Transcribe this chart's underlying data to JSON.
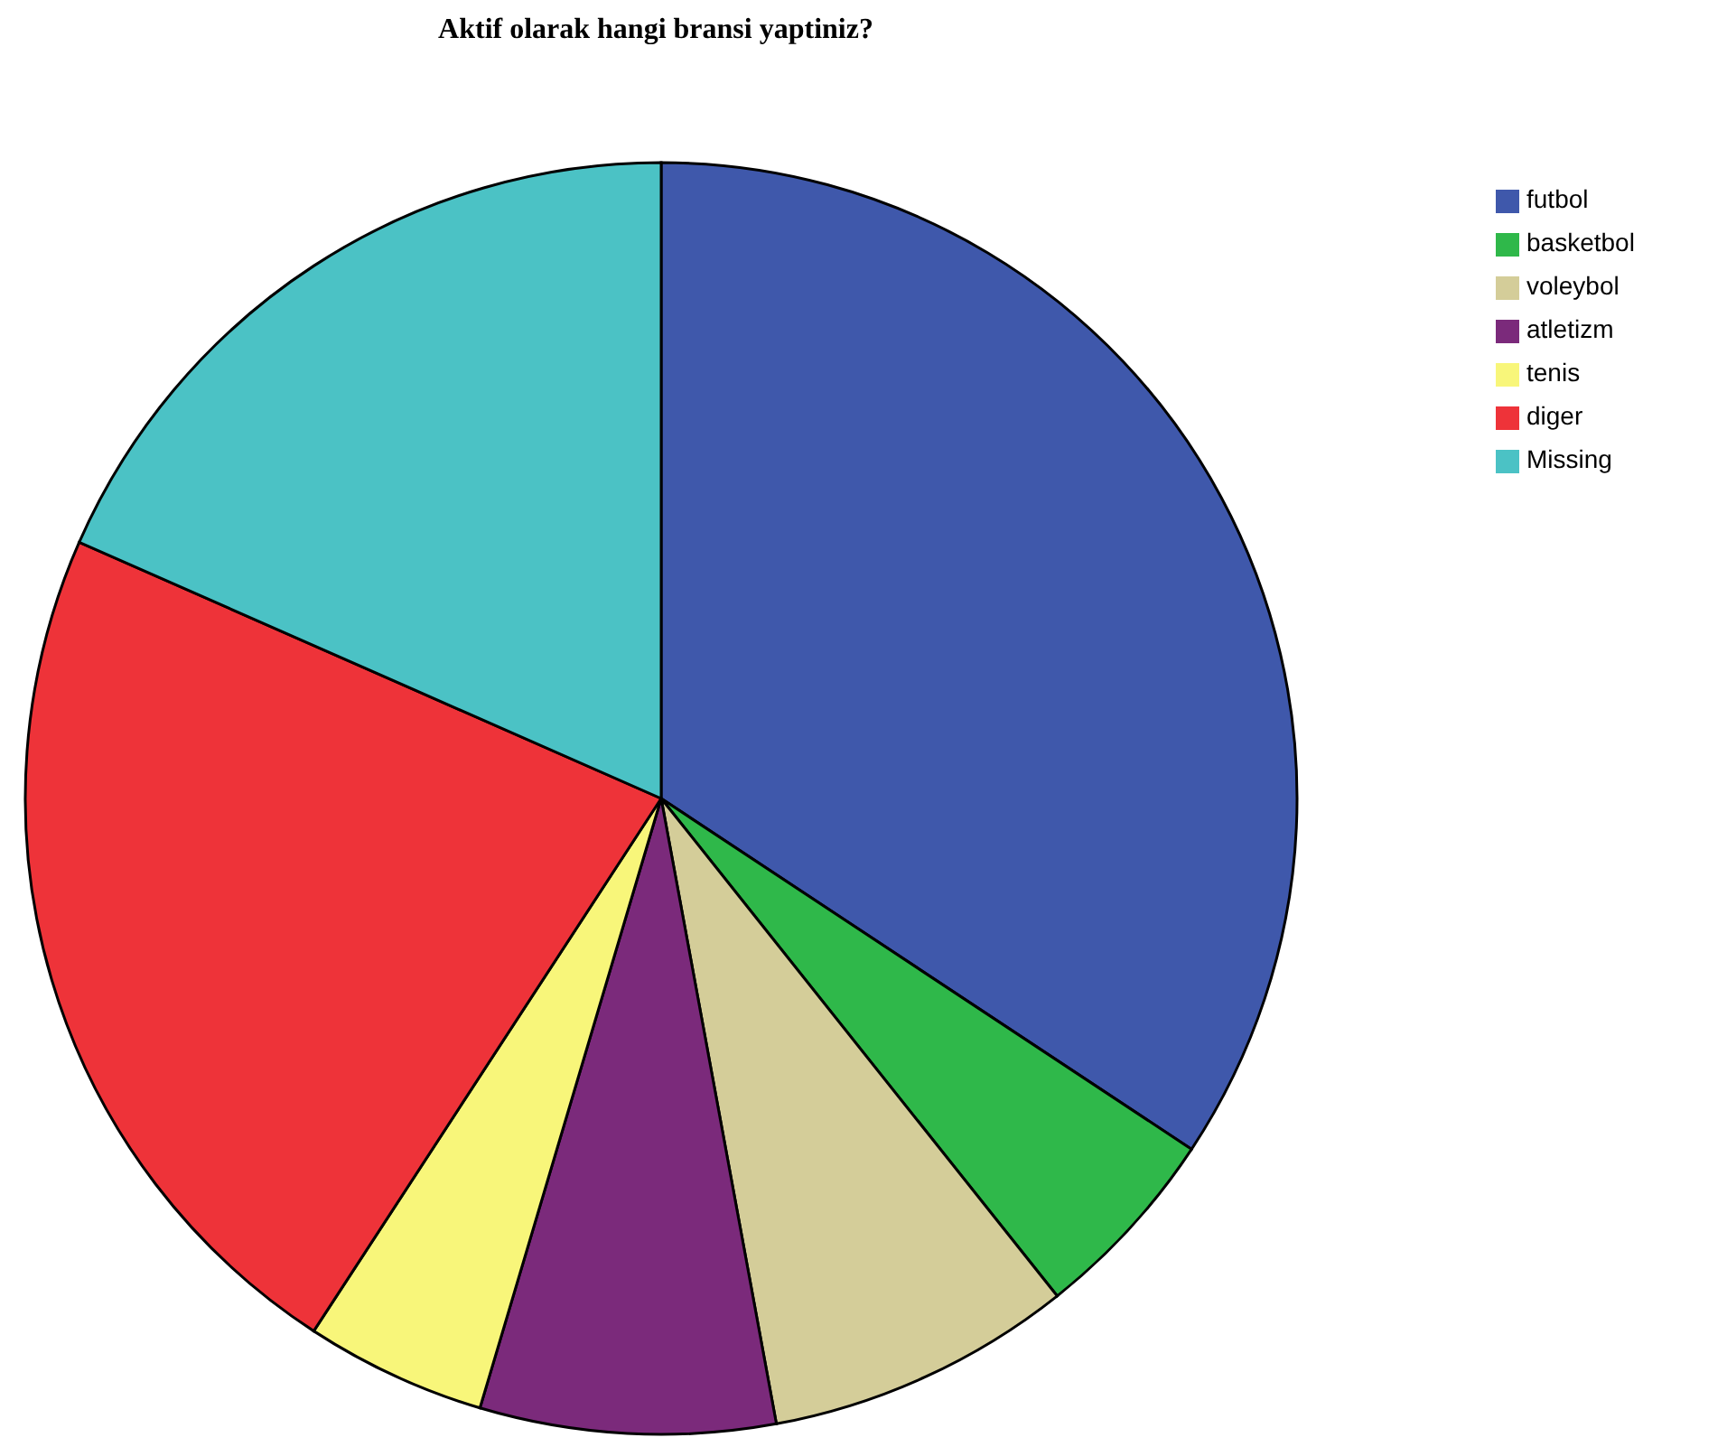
{
  "chart_data": {
    "type": "pie",
    "title": "Aktif olarak hangi bransi yaptiniz?",
    "categories": [
      "futbol",
      "basketbol",
      "voleybol",
      "atletizm",
      "tenis",
      "diger",
      "Missing"
    ],
    "values": [
      34.3,
      5.0,
      7.8,
      7.5,
      4.6,
      22.4,
      18.4
    ],
    "colors": [
      "#3f58ab",
      "#2fb84a",
      "#d4cd99",
      "#7b2a7b",
      "#f8f67a",
      "#ee3339",
      "#4bc2c5"
    ],
    "legend": "top right"
  }
}
